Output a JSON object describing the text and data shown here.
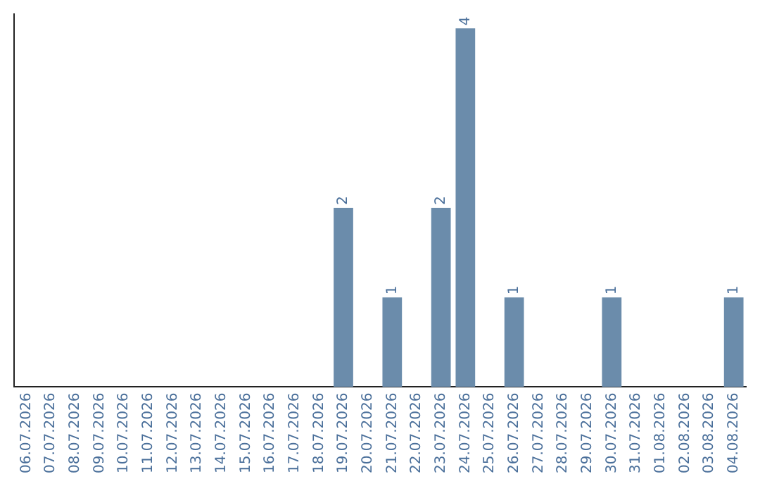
{
  "chart_data": {
    "type": "bar",
    "categories": [
      "06.07.2026",
      "07.07.2026",
      "08.07.2026",
      "09.07.2026",
      "10.07.2026",
      "11.07.2026",
      "12.07.2026",
      "13.07.2026",
      "14.07.2026",
      "15.07.2026",
      "16.07.2026",
      "17.07.2026",
      "18.07.2026",
      "19.07.2026",
      "20.07.2026",
      "21.07.2026",
      "22.07.2026",
      "23.07.2026",
      "24.07.2026",
      "25.07.2026",
      "26.07.2026",
      "27.07.2026",
      "28.07.2026",
      "29.07.2026",
      "30.07.2026",
      "31.07.2026",
      "01.08.2026",
      "02.08.2026",
      "03.08.2026",
      "04.08.2026"
    ],
    "values": [
      null,
      null,
      null,
      null,
      null,
      null,
      null,
      null,
      null,
      null,
      null,
      null,
      null,
      2,
      null,
      1,
      null,
      2,
      4,
      null,
      1,
      null,
      null,
      null,
      1,
      null,
      null,
      null,
      null,
      1
    ],
    "data_labels": true,
    "color": "#6b8cab",
    "ylim": [
      0,
      4.16
    ],
    "tick_labels": "x",
    "grid": false,
    "legend": false
  }
}
